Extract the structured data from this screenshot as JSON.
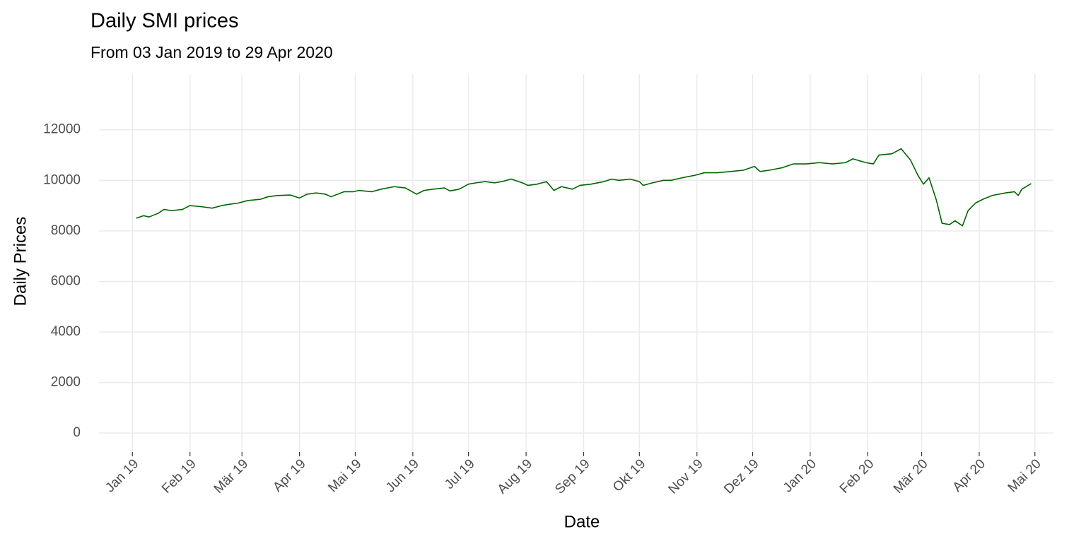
{
  "chart_data": {
    "type": "line",
    "title": "Daily SMI prices",
    "subtitle": "From 03 Jan 2019 to 29 Apr 2020",
    "x_label": "Date",
    "y_label": "Daily Prices",
    "color": "#006400",
    "grid": true,
    "x": [
      "2019-01-03",
      "2019-01-07",
      "2019-01-10",
      "2019-01-15",
      "2019-01-18",
      "2019-01-22",
      "2019-01-28",
      "2019-02-01",
      "2019-02-08",
      "2019-02-13",
      "2019-02-18",
      "2019-02-22",
      "2019-02-27",
      "2019-03-04",
      "2019-03-11",
      "2019-03-15",
      "2019-03-20",
      "2019-03-27",
      "2019-04-01",
      "2019-04-05",
      "2019-04-10",
      "2019-04-15",
      "2019-04-18",
      "2019-04-25",
      "2019-04-30",
      "2019-05-03",
      "2019-05-10",
      "2019-05-15",
      "2019-05-22",
      "2019-05-28",
      "2019-06-03",
      "2019-06-07",
      "2019-06-12",
      "2019-06-18",
      "2019-06-21",
      "2019-06-26",
      "2019-07-01",
      "2019-07-05",
      "2019-07-10",
      "2019-07-15",
      "2019-07-19",
      "2019-07-24",
      "2019-07-30",
      "2019-08-02",
      "2019-08-07",
      "2019-08-12",
      "2019-08-16",
      "2019-08-20",
      "2019-08-26",
      "2019-08-30",
      "2019-09-05",
      "2019-09-12",
      "2019-09-16",
      "2019-09-20",
      "2019-09-26",
      "2019-10-01",
      "2019-10-03",
      "2019-10-08",
      "2019-10-14",
      "2019-10-18",
      "2019-10-24",
      "2019-10-31",
      "2019-11-05",
      "2019-11-12",
      "2019-11-19",
      "2019-11-26",
      "2019-12-02",
      "2019-12-05",
      "2019-12-10",
      "2019-12-17",
      "2019-12-23",
      "2019-12-30",
      "2020-01-06",
      "2020-01-13",
      "2020-01-20",
      "2020-01-24",
      "2020-01-31",
      "2020-02-04",
      "2020-02-07",
      "2020-02-14",
      "2020-02-19",
      "2020-02-24",
      "2020-02-28",
      "2020-03-02",
      "2020-03-05",
      "2020-03-09",
      "2020-03-12",
      "2020-03-16",
      "2020-03-19",
      "2020-03-23",
      "2020-03-26",
      "2020-03-30",
      "2020-04-03",
      "2020-04-08",
      "2020-04-15",
      "2020-04-20",
      "2020-04-22",
      "2020-04-24",
      "2020-04-29"
    ],
    "values": [
      8500,
      8600,
      8550,
      8700,
      8850,
      8800,
      8850,
      9000,
      8950,
      8900,
      9000,
      9050,
      9100,
      9200,
      9250,
      9350,
      9400,
      9420,
      9300,
      9450,
      9500,
      9450,
      9350,
      9550,
      9550,
      9600,
      9550,
      9650,
      9750,
      9700,
      9450,
      9600,
      9650,
      9700,
      9580,
      9650,
      9850,
      9900,
      9950,
      9900,
      9950,
      10050,
      9900,
      9800,
      9850,
      9950,
      9600,
      9750,
      9650,
      9800,
      9850,
      9950,
      10050,
      10000,
      10050,
      9950,
      9800,
      9900,
      10000,
      10000,
      10100,
      10200,
      10300,
      10300,
      10350,
      10400,
      10550,
      10350,
      10400,
      10500,
      10650,
      10650,
      10700,
      10650,
      10700,
      10850,
      10700,
      10650,
      11000,
      11050,
      11250,
      10800,
      10200,
      9850,
      10100,
      9200,
      8300,
      8250,
      8400,
      8200,
      8800,
      9100,
      9250,
      9400,
      9500,
      9550,
      9400,
      9650,
      9870
    ],
    "xlim": [
      "2018-12-14",
      "2020-05-11"
    ],
    "xticks": [
      {
        "value": "2019-01-01",
        "label": "Jan 19"
      },
      {
        "value": "2019-02-01",
        "label": "Feb 19"
      },
      {
        "value": "2019-03-01",
        "label": "Mär 19"
      },
      {
        "value": "2019-04-01",
        "label": "Apr 19"
      },
      {
        "value": "2019-05-01",
        "label": "Mai 19"
      },
      {
        "value": "2019-06-01",
        "label": "Jun 19"
      },
      {
        "value": "2019-07-01",
        "label": "Jul 19"
      },
      {
        "value": "2019-08-01",
        "label": "Aug 19"
      },
      {
        "value": "2019-09-01",
        "label": "Sep 19"
      },
      {
        "value": "2019-10-01",
        "label": "Okt 19"
      },
      {
        "value": "2019-11-01",
        "label": "Nov 19"
      },
      {
        "value": "2019-12-01",
        "label": "Dez 19"
      },
      {
        "value": "2020-01-01",
        "label": "Jan 20"
      },
      {
        "value": "2020-02-01",
        "label": "Feb 20"
      },
      {
        "value": "2020-03-01",
        "label": "Mär 20"
      },
      {
        "value": "2020-04-01",
        "label": "Apr 20"
      },
      {
        "value": "2020-05-01",
        "label": "Mai 20"
      }
    ],
    "ylim": [
      -750,
      14200
    ],
    "yticks": [
      0,
      2000,
      4000,
      6000,
      8000,
      10000,
      12000
    ]
  }
}
